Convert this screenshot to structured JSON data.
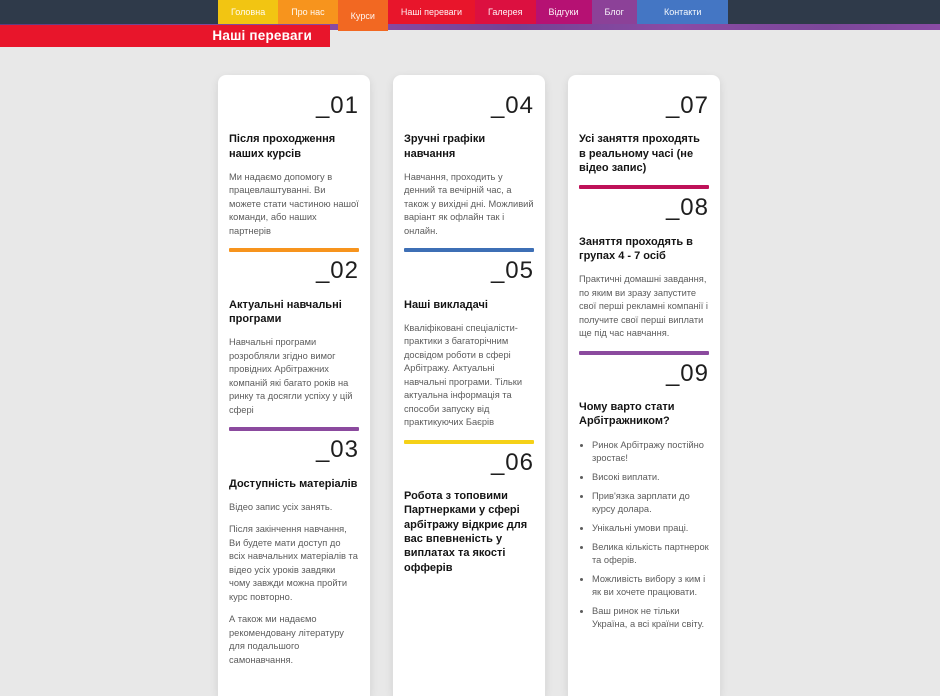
{
  "page_heading": "Наші переваги",
  "colors": {
    "top_bar": "#2F3A4A",
    "heading_banner": "#E8152B",
    "accent_strip": "#7C4799",
    "page_background": "#E8E8E8",
    "card_background": "#FFFFFF"
  },
  "nav": {
    "items": [
      {
        "label": "Головна",
        "color": "#F2C512",
        "active": false
      },
      {
        "label": "Про нас",
        "color": "#F7941D",
        "active": false
      },
      {
        "label": "Курси",
        "color": "#F26822",
        "active": true
      },
      {
        "label": "Наші переваги",
        "color": "#E8152B",
        "active": false
      },
      {
        "label": "Галерея",
        "color": "#DC1040",
        "active": false
      },
      {
        "label": "Відгуки",
        "color": "#B61173",
        "active": false
      },
      {
        "label": "Блог",
        "color": "#8C4198",
        "active": false
      },
      {
        "label": "Контакти",
        "color": "#4476C4",
        "active": false
      }
    ]
  },
  "columns": [
    {
      "items": [
        {
          "number": "_01",
          "title": "Після проходження наших курсів",
          "paragraphs": [
            "Ми надаємо допомогу в працевлаштуванні. Ви можете стати частиною нашої команди, або наших партнерів"
          ],
          "bullets": [],
          "bar_color": "#F7941D"
        },
        {
          "number": "_02",
          "title": "Актуальні навчальні програми",
          "paragraphs": [
            "Навчальні програми розробляли згідно вимог провідних Арбітражних компаній які багато років на ринку та досягли успіху у цій сфері"
          ],
          "bullets": [],
          "bar_color": "#8B4A9E"
        },
        {
          "number": "_03",
          "title": "Доступність матеріалів",
          "paragraphs": [
            "Відео запис усіх занять.",
            "Після закінчення навчання, Ви будете мати доступ до всіх навчальних матеріалів та відео усіх уроків завдяки чому завжди можна пройти курс повторно.",
            "А також ми надаємо рекомендовану літературу для подальшого самонавчання."
          ],
          "bullets": [],
          "bar_color": null
        }
      ]
    },
    {
      "items": [
        {
          "number": "_04",
          "title": "Зручні графіки навчання",
          "paragraphs": [
            "Навчання, проходить у денний та вечірній час, а також у вихідні дні. Можливий варіант як офлайн так і онлайн."
          ],
          "bullets": [],
          "bar_color": "#3E6FB5"
        },
        {
          "number": "_05",
          "title": "Наші викладачі",
          "paragraphs": [
            "Кваліфіковані спеціалісти-практики з багаторічним досвідом роботи в сфері Арбітражу. Актуальні навчальні програми. Тільки актуальна інформація та способи запуску від практикуючих Баєрів"
          ],
          "bullets": [],
          "bar_color": "#F5D117"
        },
        {
          "number": "_06",
          "title": "Робота з топовими Партнерками у сфері арбітражу відкриє для вас впевненість у виплатах та якості офферів",
          "paragraphs": [],
          "bullets": [],
          "bar_color": null
        }
      ]
    },
    {
      "items": [
        {
          "number": "_07",
          "title": "Усі заняття проходять в реальному часі (не відео запис)",
          "paragraphs": [],
          "bullets": [],
          "bar_color": "#BE1158"
        },
        {
          "number": "_08",
          "title": "Заняття проходять в групах 4 - 7 осіб",
          "paragraphs": [
            "Практичні домашні завдання, по яким ви зразу запустите свої перші рекламні компанії і получите свої перші виплати ще під час навчання."
          ],
          "bullets": [],
          "bar_color": "#8B4A9E"
        },
        {
          "number": "_09",
          "title": "Чому варто стати Арбітражником?",
          "paragraphs": [],
          "bullets": [
            "Ринок Арбітражу постійно зростає!",
            "Високі виплати.",
            "Прив'язка зарплати до курсу долара.",
            "Унікальні умови праці.",
            "Велика кількість партнерок та оферів.",
            "Можливість вибору з ким і як ви хочете працювати.",
            "Ваш ринок не тільки Україна, а всі країни світу."
          ],
          "bar_color": null
        }
      ]
    }
  ]
}
